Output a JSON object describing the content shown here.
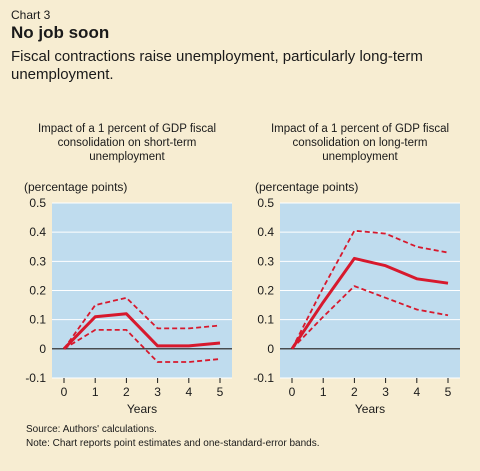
{
  "header": {
    "chart_label": "Chart 3",
    "title": "No job soon",
    "subtitle": "Fiscal contractions raise unemployment, particularly long-term unemployment."
  },
  "footer": {
    "source": "Source: Authors' calculations.",
    "note": "Note: Chart reports point estimates and one-standard-error bands."
  },
  "colors": {
    "plot_bg": "#bfdcee",
    "line": "#d7192d",
    "page_bg": "#f7edd2"
  },
  "chart_data": [
    {
      "type": "line",
      "title": "Impact of a 1 percent of GDP fiscal consolidation on short-term unemployment",
      "ylabel": "(percentage points)",
      "xlabel": "Years",
      "ylim": [
        -0.1,
        0.5
      ],
      "yticks": [
        "0.5",
        "0.4",
        "0.3",
        "0.2",
        "0.1",
        "0",
        "-0.1"
      ],
      "ytick_values": [
        0.5,
        0.4,
        0.3,
        0.2,
        0.1,
        0,
        -0.1
      ],
      "x": [
        0,
        1,
        2,
        3,
        4,
        5
      ],
      "xticks": [
        "0",
        "1",
        "2",
        "3",
        "4",
        "5"
      ],
      "series": [
        {
          "values": [
            0,
            0.11,
            0.12,
            0.01,
            0.01,
            0.02
          ],
          "style": "solid"
        },
        {
          "values": [
            0,
            0.15,
            0.175,
            0.07,
            0.07,
            0.08
          ],
          "style": "dashed"
        },
        {
          "values": [
            0,
            0.065,
            0.065,
            -0.045,
            -0.045,
            -0.035
          ],
          "style": "dashed"
        }
      ]
    },
    {
      "type": "line",
      "title": "Impact of a 1 percent of GDP fiscal consolidation on long-term unemployment",
      "ylabel": "(percentage points)",
      "xlabel": "Years",
      "ylim": [
        -0.1,
        0.5
      ],
      "yticks": [
        "0.5",
        "0.4",
        "0.3",
        "0.2",
        "0.1",
        "0",
        "-0.1"
      ],
      "ytick_values": [
        0.5,
        0.4,
        0.3,
        0.2,
        0.1,
        0,
        -0.1
      ],
      "x": [
        0,
        1,
        2,
        3,
        4,
        5
      ],
      "xticks": [
        "0",
        "1",
        "2",
        "3",
        "4",
        "5"
      ],
      "series": [
        {
          "values": [
            0,
            0.16,
            0.31,
            0.285,
            0.24,
            0.225
          ],
          "style": "solid"
        },
        {
          "values": [
            0,
            0.21,
            0.405,
            0.395,
            0.35,
            0.33
          ],
          "style": "dashed"
        },
        {
          "values": [
            0,
            0.11,
            0.215,
            0.175,
            0.135,
            0.115
          ],
          "style": "dashed"
        }
      ]
    }
  ]
}
